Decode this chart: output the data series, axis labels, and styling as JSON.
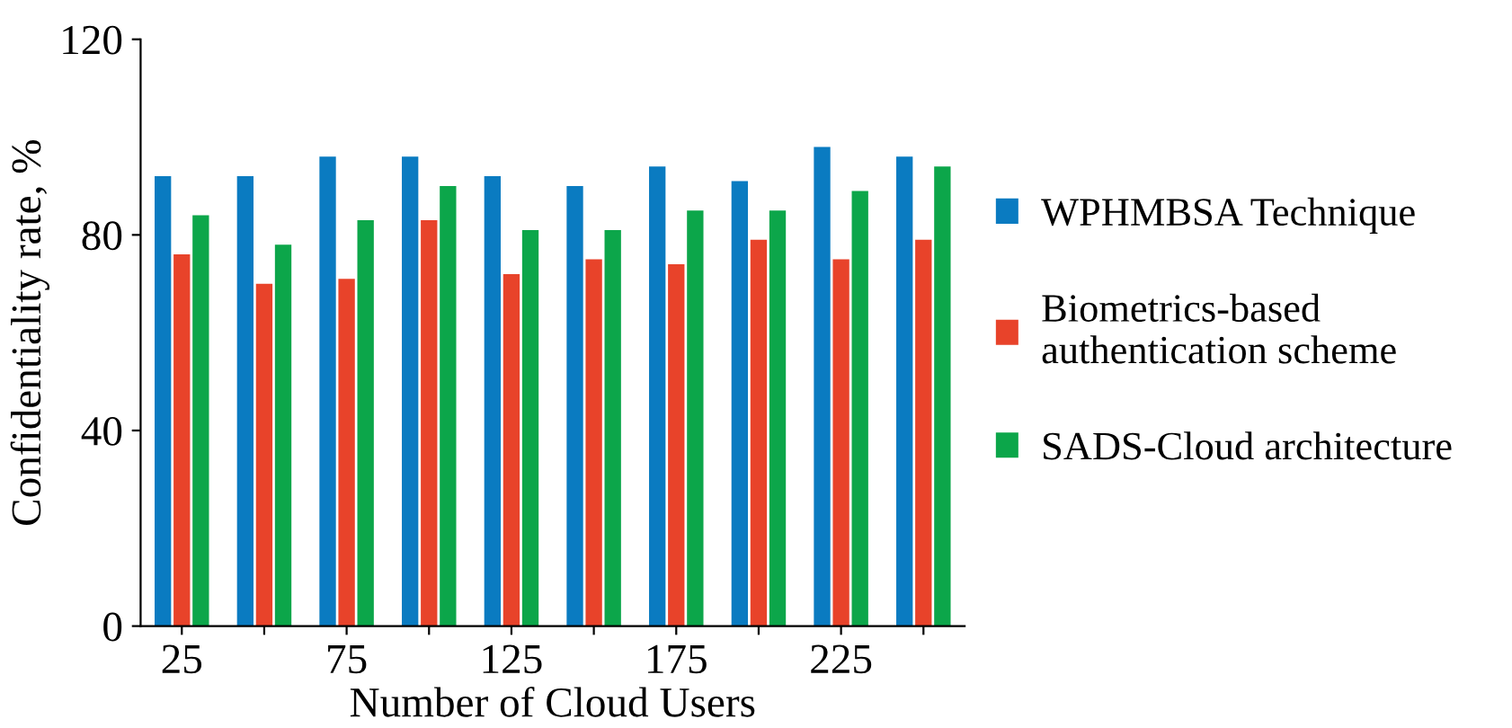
{
  "chart_data": {
    "type": "bar",
    "xlabel": "Number of Cloud Users",
    "ylabel": "Confidentiality rate, %",
    "categories": [
      "25",
      null,
      "75",
      null,
      "125",
      null,
      "175",
      null,
      "225",
      null
    ],
    "series": [
      {
        "name": "WPHMBSA Technique",
        "color": "#0a7bc1",
        "values": [
          92,
          92,
          96,
          96,
          92,
          90,
          94,
          91,
          98,
          96
        ]
      },
      {
        "name": "Biometrics-based\nauthentication scheme",
        "color": "#e8432a",
        "values": [
          76,
          70,
          71,
          83,
          72,
          75,
          74,
          79,
          75,
          79
        ]
      },
      {
        "name": "SADS-Cloud architecture",
        "color": "#0ca64a",
        "values": [
          84,
          78,
          83,
          90,
          81,
          81,
          85,
          85,
          89,
          94
        ]
      }
    ],
    "ylim": [
      0,
      120
    ],
    "yticks": [
      0,
      40,
      80,
      120
    ],
    "grid": false,
    "legend": "right"
  }
}
